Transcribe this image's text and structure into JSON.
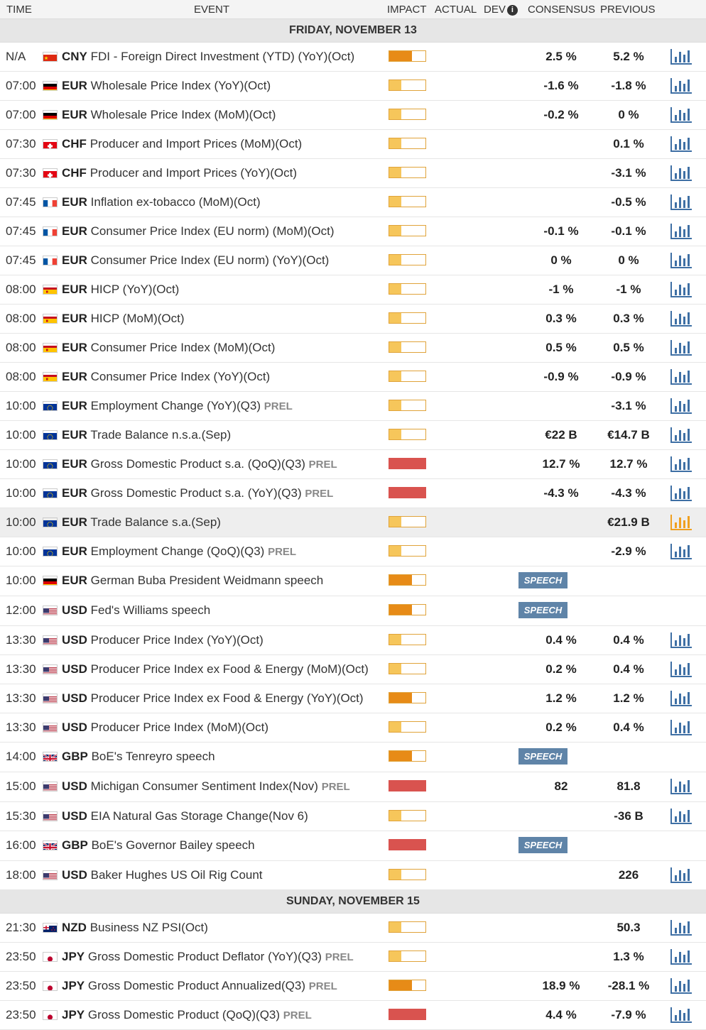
{
  "header": {
    "time": "TIME",
    "event": "EVENT",
    "impact": "IMPACT",
    "actual": "ACTUAL",
    "dev": "DEV",
    "consensus": "CONSENSUS",
    "previous": "PREVIOUS"
  },
  "colors": {
    "low": "#f6c65b",
    "medium": "#e78b17",
    "high": "#d9534f",
    "chart": "#3e6fa4",
    "chart_active": "#f0a020",
    "speech": "#5f84a8"
  },
  "groups": [
    {
      "date": "FRIDAY, NOVEMBER 13",
      "rows": [
        {
          "time": "N/A",
          "flag": "cn",
          "ccy": "CNY",
          "event": "FDI - Foreign Direct Investment (YTD) (YoY)(Oct)",
          "prel": "",
          "impact": "medium",
          "consensus": "2.5 %",
          "previous": "5.2 %",
          "chart": true
        },
        {
          "time": "07:00",
          "flag": "de",
          "ccy": "EUR",
          "event": "Wholesale Price Index (YoY)(Oct)",
          "prel": "",
          "impact": "low",
          "consensus": "-1.6 %",
          "previous": "-1.8 %",
          "chart": true
        },
        {
          "time": "07:00",
          "flag": "de",
          "ccy": "EUR",
          "event": "Wholesale Price Index (MoM)(Oct)",
          "prel": "",
          "impact": "low",
          "consensus": "-0.2 %",
          "previous": "0 %",
          "chart": true
        },
        {
          "time": "07:30",
          "flag": "ch",
          "ccy": "CHF",
          "event": "Producer and Import Prices (MoM)(Oct)",
          "prel": "",
          "impact": "low",
          "consensus": "",
          "previous": "0.1 %",
          "chart": true
        },
        {
          "time": "07:30",
          "flag": "ch",
          "ccy": "CHF",
          "event": "Producer and Import Prices (YoY)(Oct)",
          "prel": "",
          "impact": "low",
          "consensus": "",
          "previous": "-3.1 %",
          "chart": true
        },
        {
          "time": "07:45",
          "flag": "fr",
          "ccy": "EUR",
          "event": "Inflation ex-tobacco (MoM)(Oct)",
          "prel": "",
          "impact": "low",
          "consensus": "",
          "previous": "-0.5 %",
          "chart": true
        },
        {
          "time": "07:45",
          "flag": "fr",
          "ccy": "EUR",
          "event": "Consumer Price Index (EU norm) (MoM)(Oct)",
          "prel": "",
          "impact": "low",
          "consensus": "-0.1 %",
          "previous": "-0.1 %",
          "chart": true
        },
        {
          "time": "07:45",
          "flag": "fr",
          "ccy": "EUR",
          "event": "Consumer Price Index (EU norm) (YoY)(Oct)",
          "prel": "",
          "impact": "low",
          "consensus": "0 %",
          "previous": "0 %",
          "chart": true
        },
        {
          "time": "08:00",
          "flag": "es",
          "ccy": "EUR",
          "event": "HICP (YoY)(Oct)",
          "prel": "",
          "impact": "low",
          "consensus": "-1 %",
          "previous": "-1 %",
          "chart": true
        },
        {
          "time": "08:00",
          "flag": "es",
          "ccy": "EUR",
          "event": "HICP (MoM)(Oct)",
          "prel": "",
          "impact": "low",
          "consensus": "0.3 %",
          "previous": "0.3 %",
          "chart": true
        },
        {
          "time": "08:00",
          "flag": "es",
          "ccy": "EUR",
          "event": "Consumer Price Index (MoM)(Oct)",
          "prel": "",
          "impact": "low",
          "consensus": "0.5 %",
          "previous": "0.5 %",
          "chart": true
        },
        {
          "time": "08:00",
          "flag": "es",
          "ccy": "EUR",
          "event": "Consumer Price Index (YoY)(Oct)",
          "prel": "",
          "impact": "low",
          "consensus": "-0.9 %",
          "previous": "-0.9 %",
          "chart": true
        },
        {
          "time": "10:00",
          "flag": "eu",
          "ccy": "EUR",
          "event": "Employment Change (YoY)(Q3)",
          "prel": "PREL",
          "impact": "low",
          "consensus": "",
          "previous": "-3.1 %",
          "chart": true
        },
        {
          "time": "10:00",
          "flag": "eu",
          "ccy": "EUR",
          "event": "Trade Balance n.s.a.(Sep)",
          "prel": "",
          "impact": "low",
          "consensus": "€22 B",
          "previous": "€14.7 B",
          "chart": true
        },
        {
          "time": "10:00",
          "flag": "eu",
          "ccy": "EUR",
          "event": "Gross Domestic Product s.a. (QoQ)(Q3)",
          "prel": "PREL",
          "impact": "high",
          "consensus": "12.7 %",
          "previous": "12.7 %",
          "chart": true
        },
        {
          "time": "10:00",
          "flag": "eu",
          "ccy": "EUR",
          "event": "Gross Domestic Product s.a. (YoY)(Q3)",
          "prel": "PREL",
          "impact": "high",
          "consensus": "-4.3 %",
          "previous": "-4.3 %",
          "chart": true
        },
        {
          "time": "10:00",
          "flag": "eu",
          "ccy": "EUR",
          "event": "Trade Balance s.a.(Sep)",
          "prel": "",
          "impact": "low",
          "consensus": "",
          "previous": "€21.9 B",
          "chart": true,
          "highlight": true
        },
        {
          "time": "10:00",
          "flag": "eu",
          "ccy": "EUR",
          "event": "Employment Change (QoQ)(Q3)",
          "prel": "PREL",
          "impact": "low",
          "consensus": "",
          "previous": "-2.9 %",
          "chart": true
        },
        {
          "time": "10:00",
          "flag": "de",
          "ccy": "EUR",
          "event": "German Buba President Weidmann speech",
          "prel": "",
          "impact": "medium",
          "speech": "SPEECH",
          "consensus": "",
          "previous": "",
          "chart": false
        },
        {
          "time": "12:00",
          "flag": "us",
          "ccy": "USD",
          "event": "Fed's Williams speech",
          "prel": "",
          "impact": "medium",
          "speech": "SPEECH",
          "consensus": "",
          "previous": "",
          "chart": false
        },
        {
          "time": "13:30",
          "flag": "us",
          "ccy": "USD",
          "event": "Producer Price Index (YoY)(Oct)",
          "prel": "",
          "impact": "low",
          "consensus": "0.4 %",
          "previous": "0.4 %",
          "chart": true
        },
        {
          "time": "13:30",
          "flag": "us",
          "ccy": "USD",
          "event": "Producer Price Index ex Food & Energy (MoM)(Oct)",
          "prel": "",
          "impact": "low",
          "consensus": "0.2 %",
          "previous": "0.4 %",
          "chart": true
        },
        {
          "time": "13:30",
          "flag": "us",
          "ccy": "USD",
          "event": "Producer Price Index ex Food & Energy (YoY)(Oct)",
          "prel": "",
          "impact": "medium",
          "consensus": "1.2 %",
          "previous": "1.2 %",
          "chart": true
        },
        {
          "time": "13:30",
          "flag": "us",
          "ccy": "USD",
          "event": "Producer Price Index (MoM)(Oct)",
          "prel": "",
          "impact": "low",
          "consensus": "0.2 %",
          "previous": "0.4 %",
          "chart": true
        },
        {
          "time": "14:00",
          "flag": "gb",
          "ccy": "GBP",
          "event": "BoE's Tenreyro speech",
          "prel": "",
          "impact": "medium",
          "speech": "SPEECH",
          "consensus": "",
          "previous": "",
          "chart": false
        },
        {
          "time": "15:00",
          "flag": "us",
          "ccy": "USD",
          "event": "Michigan Consumer Sentiment Index(Nov)",
          "prel": "PREL",
          "impact": "high",
          "consensus": "82",
          "previous": "81.8",
          "chart": true
        },
        {
          "time": "15:30",
          "flag": "us",
          "ccy": "USD",
          "event": "EIA Natural Gas Storage Change(Nov 6)",
          "prel": "",
          "impact": "low",
          "consensus": "",
          "previous": "-36 B",
          "chart": true
        },
        {
          "time": "16:00",
          "flag": "gb",
          "ccy": "GBP",
          "event": "BoE's Governor Bailey speech",
          "prel": "",
          "impact": "high",
          "speech": "SPEECH",
          "consensus": "",
          "previous": "",
          "chart": false
        },
        {
          "time": "18:00",
          "flag": "us",
          "ccy": "USD",
          "event": "Baker Hughes US Oil Rig Count",
          "prel": "",
          "impact": "low",
          "consensus": "",
          "previous": "226",
          "chart": true
        }
      ]
    },
    {
      "date": "SUNDAY, NOVEMBER 15",
      "rows": [
        {
          "time": "21:30",
          "flag": "nz",
          "ccy": "NZD",
          "event": "Business NZ PSI(Oct)",
          "prel": "",
          "impact": "low",
          "consensus": "",
          "previous": "50.3",
          "chart": true
        },
        {
          "time": "23:50",
          "flag": "jp",
          "ccy": "JPY",
          "event": "Gross Domestic Product Deflator (YoY)(Q3)",
          "prel": "PREL",
          "impact": "low",
          "consensus": "",
          "previous": "1.3 %",
          "chart": true
        },
        {
          "time": "23:50",
          "flag": "jp",
          "ccy": "JPY",
          "event": "Gross Domestic Product Annualized(Q3)",
          "prel": "PREL",
          "impact": "medium",
          "consensus": "18.9 %",
          "previous": "-28.1 %",
          "chart": true
        },
        {
          "time": "23:50",
          "flag": "jp",
          "ccy": "JPY",
          "event": "Gross Domestic Product (QoQ)(Q3)",
          "prel": "PREL",
          "impact": "high",
          "consensus": "4.4 %",
          "previous": "-7.9 %",
          "chart": true
        }
      ]
    }
  ]
}
